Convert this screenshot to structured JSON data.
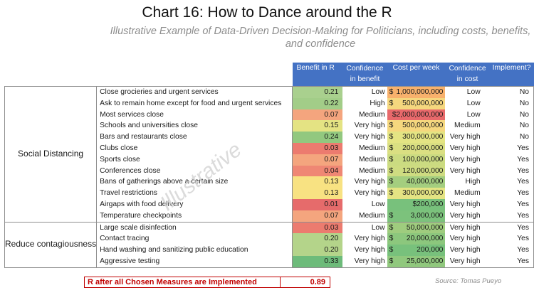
{
  "title": "Chart 16: How to Dance around the R",
  "subtitle": "Illustrative Example of Data-Driven Decision-Making for Politicians, including costs, benefits, and confidence",
  "headers": {
    "benefit": "Benefit in R",
    "conf_benefit": "Confidence in benefit",
    "cost": "Cost per week",
    "conf_cost": "Confidence in cost",
    "implement": "Implement?"
  },
  "groups": [
    {
      "name": "Social Distancing",
      "rows": [
        {
          "measure": "Close grocieries and urgent services",
          "benefit": "0.21",
          "benefit_color": "#a9d08e",
          "conf": "Low",
          "dollar": "$",
          "cost": "1,000,000,000",
          "cost_color": "#f8b16c",
          "conf_cost": "Low",
          "implement": "No"
        },
        {
          "measure": "Ask to remain home except for food and urgent services",
          "benefit": "0.22",
          "benefit_color": "#a2cd88",
          "conf": "High",
          "dollar": "$",
          "cost": "500,000,000",
          "cost_color": "#f5d77e",
          "conf_cost": "Low",
          "implement": "No"
        },
        {
          "measure": "Most services close",
          "benefit": "0.07",
          "benefit_color": "#f4a57e",
          "conf": "Medium",
          "dollar": "",
          "cost": "$2,000,000,000",
          "cost_color": "#e8696b",
          "conf_cost": "Low",
          "implement": "No"
        },
        {
          "measure": "Schools and universities close",
          "benefit": "0.15",
          "benefit_color": "#e4e383",
          "conf": "Very high",
          "dollar": "$",
          "cost": "500,000,000",
          "cost_color": "#f5d77e",
          "conf_cost": "Medium",
          "implement": "No"
        },
        {
          "measure": "Bars and restaurants close",
          "benefit": "0.24",
          "benefit_color": "#92c87f",
          "conf": "Very high",
          "dollar": "$",
          "cost": "300,000,000",
          "cost_color": "#e4e483",
          "conf_cost": "Very high",
          "implement": "No"
        },
        {
          "measure": "Clubs close",
          "benefit": "0.03",
          "benefit_color": "#ec7b6f",
          "conf": "Medium",
          "dollar": "$",
          "cost": "200,000,000",
          "cost_color": "#dadf82",
          "conf_cost": "Very high",
          "implement": "Yes"
        },
        {
          "measure": "Sports close",
          "benefit": "0.07",
          "benefit_color": "#f4a57e",
          "conf": "Medium",
          "dollar": "$",
          "cost": "100,000,000",
          "cost_color": "#cbdb81",
          "conf_cost": "Very high",
          "implement": "Yes"
        },
        {
          "measure": "Conferences close",
          "benefit": "0.04",
          "benefit_color": "#ef8774",
          "conf": "Medium",
          "dollar": "$",
          "cost": "120,000,000",
          "cost_color": "#cedc81",
          "conf_cost": "Very high",
          "implement": "Yes"
        },
        {
          "measure": "Bans of gatherings above a certain size",
          "benefit": "0.13",
          "benefit_color": "#f8e282",
          "conf": "Very high",
          "dollar": "$",
          "cost": "40,000,000",
          "cost_color": "#a4ce7f",
          "conf_cost": "High",
          "implement": "Yes"
        },
        {
          "measure": "Travel restrictions",
          "benefit": "0.13",
          "benefit_color": "#f8e282",
          "conf": "Very high",
          "dollar": "$",
          "cost": "300,000,000",
          "cost_color": "#e4e483",
          "conf_cost": "Medium",
          "implement": "Yes"
        },
        {
          "measure": "Airgaps with food delivery",
          "benefit": "0.01",
          "benefit_color": "#e66b6b",
          "conf": "Low",
          "dollar": "",
          "cost": "$200,000",
          "cost_color": "#78c17c",
          "conf_cost": "Very high",
          "implement": "Yes"
        },
        {
          "measure": "Temperature checkpoints",
          "benefit": "0.07",
          "benefit_color": "#f4a57e",
          "conf": "Medium",
          "dollar": "$",
          "cost": "3,000,000",
          "cost_color": "#7cc27c",
          "conf_cost": "Very high",
          "implement": "Yes"
        }
      ]
    },
    {
      "name": "Reduce contagiousness",
      "rows": [
        {
          "measure": "Large scale disinfection",
          "benefit": "0.03",
          "benefit_color": "#ec7b6f",
          "conf": "Low",
          "dollar": "$",
          "cost": "50,000,000",
          "cost_color": "#9fcc7e",
          "conf_cost": "Very high",
          "implement": "Yes"
        },
        {
          "measure": "Contact tracing",
          "benefit": "0.20",
          "benefit_color": "#b4d48a",
          "conf": "Very high",
          "dollar": "$",
          "cost": "20,000,000",
          "cost_color": "#8cc77d",
          "conf_cost": "Very high",
          "implement": "Yes"
        },
        {
          "measure": "Hand washing and sanitizing public education",
          "benefit": "0.20",
          "benefit_color": "#b4d48a",
          "conf": "Very high",
          "dollar": "$",
          "cost": "200,000",
          "cost_color": "#78c17c",
          "conf_cost": "Very high",
          "implement": "Yes"
        },
        {
          "measure": "Aggressive testing",
          "benefit": "0.33",
          "benefit_color": "#6dbb7a",
          "conf": "Very high",
          "dollar": "$",
          "cost": "25,000,000",
          "cost_color": "#90c87d",
          "conf_cost": "Very high",
          "implement": "Yes"
        }
      ]
    }
  ],
  "watermark": "Illustrative",
  "result": {
    "label": "R after all Chosen Measures are Implemented",
    "value": "0.89"
  },
  "source": "Source: Tomas Pueyo",
  "colors": {
    "header_bg": "#4472c4",
    "result_red": "#c00000"
  }
}
